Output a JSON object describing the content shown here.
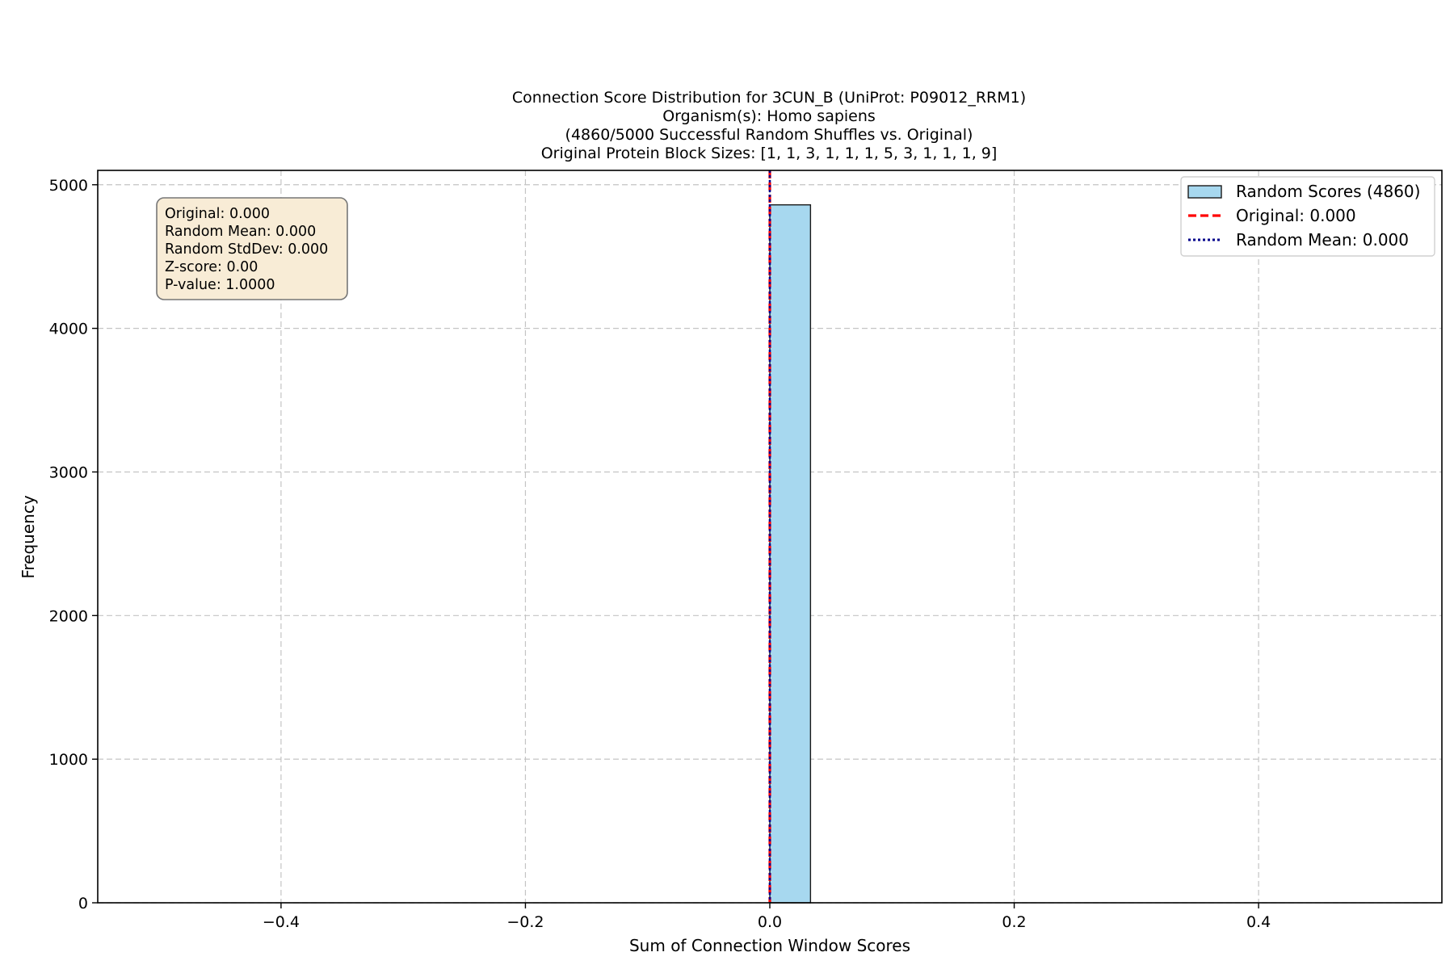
{
  "chart_data": {
    "type": "bar",
    "title_lines": [
      "Connection Score Distribution for 3CUN_B (UniProt: P09012_RRM1)",
      "Organism(s): Homo sapiens",
      "(4860/5000 Successful Random Shuffles vs. Original)",
      "Original Protein Block Sizes: [1, 1, 3, 1, 1, 1, 5, 3, 1, 1, 1, 9]"
    ],
    "xlabel": "Sum of Connection Window Scores",
    "ylabel": "Frequency",
    "xlim": [
      -0.55,
      0.55
    ],
    "ylim": [
      0,
      5100
    ],
    "xticks": [
      -0.4,
      -0.2,
      0.0,
      0.2,
      0.4
    ],
    "xtick_labels": [
      "−0.4",
      "−0.2",
      "0.0",
      "0.2",
      "0.4"
    ],
    "yticks": [
      0,
      1000,
      2000,
      3000,
      4000,
      5000
    ],
    "ytick_labels": [
      "0",
      "1000",
      "2000",
      "3000",
      "4000",
      "5000"
    ],
    "grid": true,
    "bars": [
      {
        "x_start": 0.0,
        "x_end": 0.0333,
        "count": 4860
      }
    ],
    "vlines": [
      {
        "name": "Original: 0.000",
        "x": 0.0,
        "color": "#ff0000",
        "style": "dashed"
      },
      {
        "name": "Random Mean: 0.000",
        "x": 0.0,
        "color": "#00008b",
        "style": "dotted"
      }
    ],
    "legend": {
      "placement": "top-right",
      "entries": [
        {
          "label": "Random Scores (4860)",
          "kind": "patch"
        },
        {
          "label": "Original: 0.000",
          "kind": "dashed"
        },
        {
          "label": "Random Mean: 0.000",
          "kind": "dotted"
        }
      ]
    },
    "stats_box": {
      "placement": "top-left",
      "lines": [
        "Original: 0.000",
        "Random Mean: 0.000",
        "Random StdDev: 0.000",
        "Z-score: 0.00",
        "P-value: 1.0000"
      ]
    },
    "colors": {
      "bar_fill": "#a7d8ef",
      "bar_edge": "#1a1a1a",
      "grid": "#c4c4c4",
      "axis": "#000000",
      "stats_box_fill": "#f8ecd6",
      "stats_box_edge": "#777777",
      "legend_edge": "#d0d0d0"
    }
  }
}
